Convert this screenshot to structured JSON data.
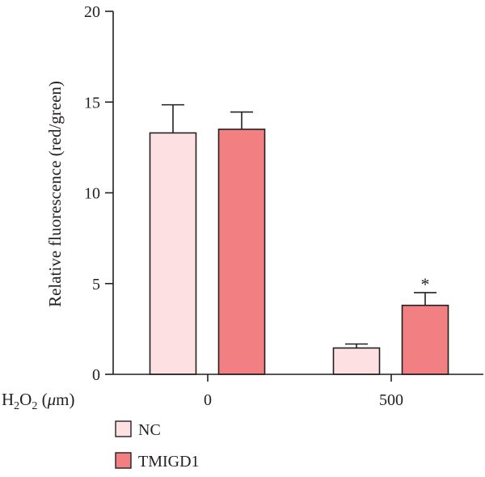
{
  "chart_data": {
    "type": "bar",
    "title": "",
    "ylabel": "Relative fluorescence (red/green)",
    "xlabel": {
      "main": "H",
      "sub1": "2",
      "mid": "O",
      "sub2": "2",
      "unit_open": " (",
      "unit_mu": "μ",
      "unit_rest": "m)"
    },
    "categories": [
      "0",
      "500"
    ],
    "ylim": [
      0,
      20
    ],
    "yticks": [
      "0",
      "5",
      "10",
      "15",
      "20"
    ],
    "series": [
      {
        "name": "NC",
        "color": "#fde0e1",
        "values": [
          13.3,
          1.45
        ],
        "errors": [
          1.55,
          0.22
        ]
      },
      {
        "name": "TMIGD1",
        "color": "#f28083",
        "values": [
          13.5,
          3.8
        ],
        "errors": [
          0.95,
          0.7
        ]
      }
    ],
    "annotations": [
      {
        "text": "*",
        "category_index": 1,
        "series_index": 1
      }
    ],
    "legend": "bottom-left",
    "grid": false
  }
}
